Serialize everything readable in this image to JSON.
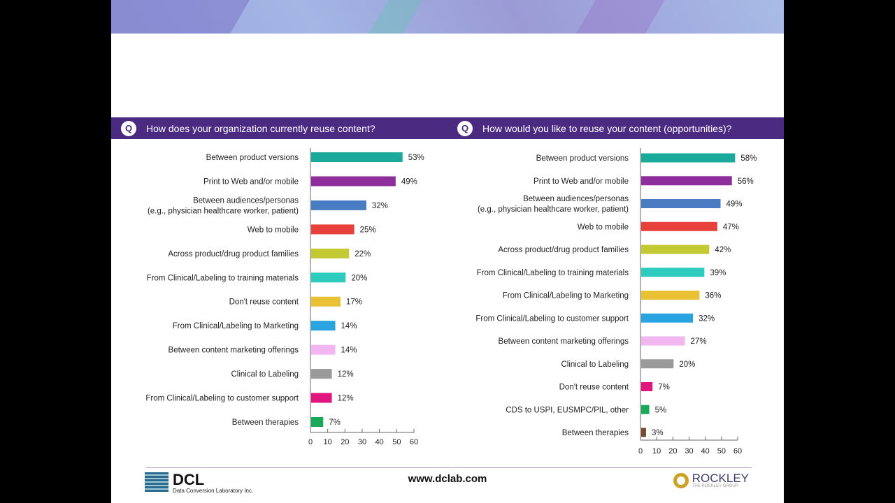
{
  "footer": {
    "url": "www.dclab.com",
    "dcl_logo": "DCL",
    "dcl_sub": "Data Conversion Laboratory Inc.",
    "rockley_logo": "ROCKLEY",
    "rockley_sub": "THE ROCKLEY GROUP"
  },
  "q_icon": "Q",
  "chart_data": [
    {
      "type": "bar",
      "orientation": "horizontal",
      "title": "How does your organization currently reuse content?",
      "categories": [
        "Between product versions",
        "Print to Web and/or mobile",
        "Between audiences/personas|(e.g., physician healthcare worker, patient)",
        "Web to mobile",
        "Across product/drug product families",
        "From Clinical/Labeling to training materials",
        "Don't reuse content",
        "From Clinical/Labeling to Marketing",
        "Between content marketing offerings",
        "Clinical to Labeling",
        "From Clinical/Labeling to customer support",
        "Between therapies"
      ],
      "values": [
        53,
        49,
        32,
        25,
        22,
        20,
        17,
        14,
        14,
        12,
        12,
        7
      ],
      "data_labels": [
        "53%",
        "49%",
        "32%",
        "25%",
        "22%",
        "20%",
        "17%",
        "14%",
        "14%",
        "12%",
        "12%",
        "7%"
      ],
      "colors": [
        "#1aa99a",
        "#8e2d9c",
        "#4a7cc4",
        "#e8413c",
        "#c3c932",
        "#2dcbbd",
        "#e8c234",
        "#2aa4e0",
        "#f2b6f0",
        "#9a9a9a",
        "#e0157e",
        "#1aa85a"
      ],
      "xlim": [
        0,
        60
      ],
      "xticks": [
        "0",
        "10",
        "20",
        "30",
        "40",
        "50",
        "60"
      ],
      "grid": false
    },
    {
      "type": "bar",
      "orientation": "horizontal",
      "title": "How would you like to reuse your content (opportunities)?",
      "categories": [
        "Between product versions",
        "Print to Web and/or mobile",
        "Between audiences/personas|(e.g., physician healthcare worker, patient)",
        "Web to mobile",
        "Across product/drug product families",
        "From Clinical/Labeling to training materials",
        "From Clinical/Labeling to Marketing",
        "From Clinical/Labeling to customer support",
        "Between content marketing offerings",
        "Clinical to Labeling",
        "Don't reuse content",
        "CDS to USPI, EUSMPC/PIL, other",
        "Between therapies"
      ],
      "values": [
        58,
        56,
        49,
        47,
        42,
        39,
        36,
        32,
        27,
        20,
        7,
        5,
        3
      ],
      "data_labels": [
        "58%",
        "56%",
        "49%",
        "47%",
        "42%",
        "39%",
        "36%",
        "32%",
        "27%",
        "20%",
        "7%",
        "5%",
        "3%"
      ],
      "colors": [
        "#1aa99a",
        "#8e2d9c",
        "#4a7cc4",
        "#e8413c",
        "#c3c932",
        "#2dcbbd",
        "#e8c234",
        "#2aa4e0",
        "#f2b6f0",
        "#9a9a9a",
        "#e0157e",
        "#1aa85a",
        "#7a4a2e"
      ],
      "xlim": [
        0,
        60
      ],
      "xticks": [
        "0",
        "10",
        "20",
        "30",
        "40",
        "50",
        "60"
      ],
      "grid": false
    }
  ]
}
